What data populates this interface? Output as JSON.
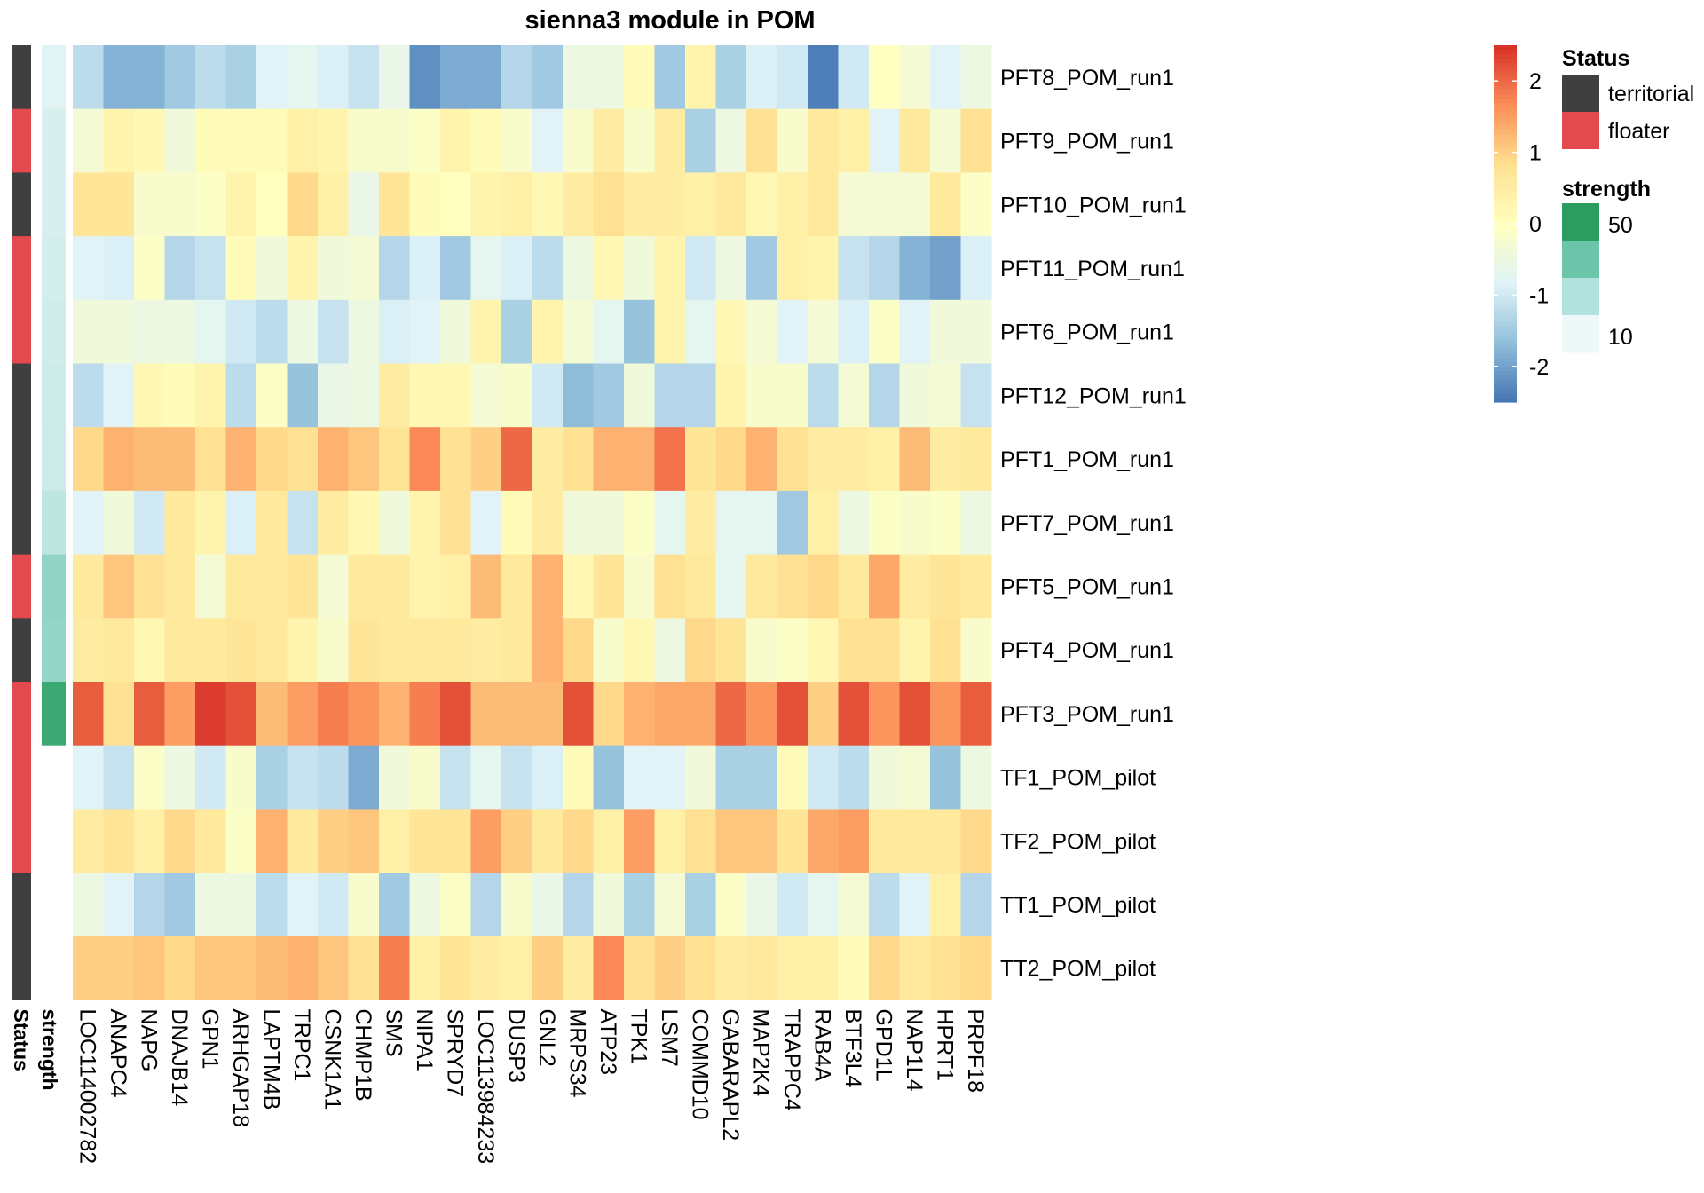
{
  "chart_data": {
    "type": "heatmap",
    "title": "sienna3 module in POM",
    "rows": [
      "PFT8_POM_run1",
      "PFT9_POM_run1",
      "PFT10_POM_run1",
      "PFT11_POM_run1",
      "PFT6_POM_run1",
      "PFT12_POM_run1",
      "PFT1_POM_run1",
      "PFT7_POM_run1",
      "PFT5_POM_run1",
      "PFT4_POM_run1",
      "PFT3_POM_run1",
      "TF1_POM_pilot",
      "TF2_POM_pilot",
      "TT1_POM_pilot",
      "TT2_POM_pilot"
    ],
    "columns": [
      "LOC114002782",
      "ANAPC4",
      "NAPG",
      "DNAJB14",
      "GPN1",
      "ARHGAP18",
      "LAPTM4B",
      "TRPC1",
      "CSNK1A1",
      "CHMP1B",
      "SMS",
      "NIPA1",
      "SPRYD7",
      "LOC113984233",
      "DUSP3",
      "GNL2",
      "MRPS34",
      "ATP23",
      "TPK1",
      "LSM7",
      "COMMD10",
      "GABARAPL2",
      "MAP2K4",
      "TRAPPC4",
      "RAB4A",
      "BTF3L4",
      "GPD1L",
      "NAP1L4",
      "HPRT1",
      "PRPF18"
    ],
    "values": [
      [
        -1.2,
        -1.8,
        -1.8,
        -1.5,
        -1.2,
        -1.4,
        -0.8,
        -0.7,
        -0.9,
        -1.1,
        -0.6,
        -2.2,
        -1.9,
        -1.9,
        -1.3,
        -1.5,
        -0.5,
        -0.5,
        0.1,
        -1.5,
        0.3,
        -1.4,
        -0.9,
        -1.0,
        -2.4,
        -1.0,
        0.0,
        -0.3,
        -0.8,
        -0.5
      ],
      [
        -0.3,
        0.3,
        0.2,
        -0.4,
        0.1,
        0.1,
        0.1,
        0.4,
        0.3,
        -0.2,
        -0.2,
        -0.1,
        0.3,
        0.1,
        -0.2,
        -0.8,
        -0.2,
        0.5,
        -0.2,
        0.5,
        -1.4,
        -0.5,
        0.8,
        -0.2,
        0.6,
        0.4,
        -0.8,
        0.6,
        -0.3,
        0.8
      ],
      [
        0.7,
        0.7,
        -0.2,
        -0.2,
        -0.1,
        0.3,
        0.0,
        0.9,
        0.4,
        -0.6,
        0.7,
        0.1,
        0.0,
        0.3,
        0.4,
        0.2,
        0.5,
        0.8,
        0.5,
        0.5,
        0.4,
        0.6,
        0.2,
        0.4,
        0.6,
        -0.3,
        -0.3,
        -0.3,
        0.6,
        -0.1
      ],
      [
        -0.8,
        -0.9,
        -0.1,
        -1.3,
        -1.1,
        0.1,
        -0.4,
        0.3,
        -0.4,
        -0.3,
        -1.3,
        -0.9,
        -1.5,
        -0.7,
        -0.9,
        -1.2,
        -0.5,
        0.2,
        -0.4,
        0.3,
        -1.0,
        -0.5,
        -1.5,
        0.4,
        0.3,
        -1.1,
        -1.3,
        -1.8,
        -2.0,
        -0.9
      ],
      [
        -0.4,
        -0.4,
        -0.5,
        -0.5,
        -0.7,
        -1.0,
        -1.2,
        -0.5,
        -1.1,
        -0.5,
        -0.9,
        -0.8,
        -0.4,
        0.3,
        -1.4,
        0.3,
        -0.3,
        -0.7,
        -1.6,
        0.3,
        -0.7,
        0.2,
        -0.3,
        -0.8,
        -0.3,
        -0.9,
        -0.1,
        -0.8,
        -0.4,
        -0.4
      ],
      [
        -1.2,
        -0.8,
        0.2,
        0.1,
        0.3,
        -1.2,
        -0.1,
        -1.6,
        -0.6,
        -0.5,
        0.5,
        0.2,
        0.2,
        -0.3,
        -0.2,
        -1.0,
        -1.7,
        -1.5,
        -0.4,
        -1.3,
        -1.3,
        0.3,
        -0.2,
        -0.2,
        -1.2,
        -0.3,
        -1.3,
        -0.4,
        -0.3,
        -1.1
      ],
      [
        0.9,
        1.3,
        1.2,
        1.2,
        0.8,
        1.3,
        0.9,
        0.8,
        1.3,
        1.1,
        0.7,
        1.7,
        0.8,
        1.0,
        2.0,
        0.5,
        0.8,
        1.3,
        1.3,
        1.9,
        0.7,
        0.9,
        1.3,
        0.8,
        0.5,
        0.5,
        0.4,
        1.2,
        0.5,
        0.6
      ],
      [
        -0.8,
        -0.4,
        -1.0,
        0.6,
        0.3,
        -0.9,
        0.6,
        -1.1,
        0.5,
        0.2,
        -0.4,
        0.3,
        0.8,
        -0.8,
        0.1,
        0.5,
        -0.4,
        -0.4,
        -0.1,
        -0.7,
        0.5,
        -0.7,
        -0.7,
        -1.5,
        0.4,
        -0.5,
        -0.1,
        -0.2,
        -0.1,
        -0.5
      ],
      [
        0.6,
        1.1,
        0.8,
        0.6,
        -0.3,
        0.6,
        0.6,
        0.7,
        -0.3,
        0.6,
        0.6,
        0.3,
        0.4,
        1.2,
        0.6,
        1.3,
        0.2,
        0.7,
        -0.2,
        0.8,
        0.6,
        -0.7,
        0.6,
        0.8,
        0.9,
        0.6,
        1.4,
        0.5,
        0.7,
        0.6
      ],
      [
        0.5,
        0.6,
        0.2,
        0.6,
        0.6,
        0.7,
        0.6,
        0.3,
        -0.2,
        0.7,
        0.6,
        0.6,
        0.6,
        0.5,
        0.6,
        1.3,
        0.9,
        -0.2,
        0.2,
        -0.5,
        0.9,
        0.7,
        -0.2,
        -0.1,
        0.2,
        0.8,
        0.8,
        0.3,
        0.8,
        -0.2
      ],
      [
        2.1,
        0.8,
        2.1,
        1.5,
        2.4,
        2.2,
        1.2,
        1.5,
        1.8,
        1.6,
        1.3,
        1.8,
        2.2,
        1.2,
        1.2,
        1.2,
        2.2,
        0.9,
        1.3,
        1.4,
        1.4,
        2.0,
        1.6,
        2.2,
        1.0,
        2.2,
        1.6,
        2.2,
        1.6,
        2.1
      ],
      [
        -0.8,
        -1.1,
        -0.1,
        -0.5,
        -1.0,
        -0.2,
        -1.4,
        -1.1,
        -1.2,
        -1.9,
        -0.4,
        -0.2,
        -1.1,
        -0.7,
        -1.1,
        -0.9,
        0.1,
        -1.6,
        -0.8,
        -0.8,
        -0.4,
        -1.4,
        -1.4,
        0.1,
        -1.0,
        -1.2,
        -0.4,
        -0.3,
        -1.6,
        -0.5
      ],
      [
        0.5,
        0.7,
        0.4,
        0.9,
        0.6,
        -0.1,
        1.3,
        0.6,
        1.0,
        1.1,
        0.4,
        0.7,
        0.7,
        1.5,
        1.0,
        0.6,
        0.9,
        0.4,
        1.5,
        0.4,
        0.8,
        1.1,
        1.1,
        0.7,
        1.4,
        1.5,
        0.6,
        0.6,
        0.6,
        0.9
      ],
      [
        -0.5,
        -0.8,
        -1.3,
        -1.5,
        -0.5,
        -0.5,
        -1.2,
        -0.8,
        -1.0,
        -0.2,
        -1.5,
        -0.5,
        -0.1,
        -1.3,
        -0.2,
        -0.6,
        -1.3,
        -0.4,
        -1.4,
        -0.3,
        -1.4,
        -0.1,
        -0.6,
        -1.0,
        -0.7,
        -0.3,
        -1.2,
        -0.8,
        0.4,
        -1.3
      ],
      [
        1.0,
        1.0,
        1.1,
        0.9,
        1.1,
        1.1,
        1.2,
        1.3,
        1.1,
        0.8,
        1.8,
        0.4,
        0.7,
        0.5,
        0.4,
        1.0,
        0.5,
        1.7,
        0.8,
        1.0,
        0.8,
        0.5,
        0.6,
        0.4,
        0.4,
        0.1,
        0.9,
        0.6,
        0.8,
        0.9
      ]
    ],
    "annotations": {
      "status": [
        "territorial",
        "floater",
        "territorial",
        "floater",
        "floater",
        "territorial",
        "territorial",
        "territorial",
        "floater",
        "territorial",
        "floater",
        "floater",
        "floater",
        "territorial",
        "territorial"
      ],
      "strength": [
        9,
        12,
        12,
        13,
        14,
        15,
        16,
        20,
        32,
        31,
        55,
        null,
        null,
        null,
        null
      ]
    },
    "annotation_labels": [
      "Status",
      "strength"
    ],
    "legend_position": "right",
    "color_legend": {
      "ticks": [
        2,
        1,
        0,
        -1,
        -2
      ],
      "range": [
        -2.5,
        2.5
      ],
      "colors": [
        "#4575b4",
        "#91bfdb",
        "#e0f3f8",
        "#ffffbf",
        "#fee090",
        "#fc8d59",
        "#d73027"
      ]
    },
    "status_legend": {
      "title": "Status",
      "items": [
        {
          "label": "territorial",
          "color": "#3f3f3f"
        },
        {
          "label": "floater",
          "color": "#e34a50"
        }
      ]
    },
    "strength_legend": {
      "title": "strength",
      "labels": [
        "50",
        "10"
      ],
      "colors": [
        "#2a9d5f",
        "#6cc4a9",
        "#b2e2dc",
        "#eef8f8"
      ],
      "range": [
        5,
        60
      ]
    },
    "missing_color": "#ffffff"
  }
}
